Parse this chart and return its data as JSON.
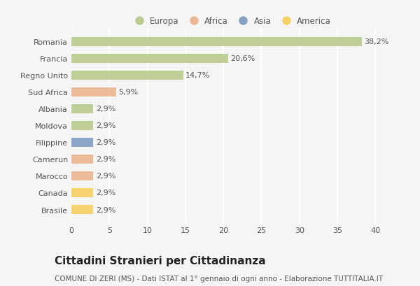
{
  "categories": [
    "Romania",
    "Francia",
    "Regno Unito",
    "Sud Africa",
    "Albania",
    "Moldova",
    "Filippine",
    "Camerun",
    "Marocco",
    "Canada",
    "Brasile"
  ],
  "values": [
    38.2,
    20.6,
    14.7,
    5.9,
    2.9,
    2.9,
    2.9,
    2.9,
    2.9,
    2.9,
    2.9
  ],
  "labels": [
    "38,2%",
    "20,6%",
    "14,7%",
    "5,9%",
    "2,9%",
    "2,9%",
    "2,9%",
    "2,9%",
    "2,9%",
    "2,9%",
    "2,9%"
  ],
  "colors": [
    "#adc178",
    "#adc178",
    "#adc178",
    "#e8a87c",
    "#adc178",
    "#adc178",
    "#6b8cba",
    "#e8a87c",
    "#e8a87c",
    "#f5c842",
    "#f5c842"
  ],
  "legend_labels": [
    "Europa",
    "Africa",
    "Asia",
    "America"
  ],
  "legend_colors": [
    "#adc178",
    "#e8a87c",
    "#6b8cba",
    "#f5c842"
  ],
  "title": "Cittadini Stranieri per Cittadinanza",
  "subtitle": "COMUNE DI ZERI (MS) - Dati ISTAT al 1° gennaio di ogni anno - Elaborazione TUTTITALIA.IT",
  "xlim": [
    0,
    42
  ],
  "xticks": [
    0,
    5,
    10,
    15,
    20,
    25,
    30,
    35,
    40
  ],
  "background_color": "#f5f5f5",
  "grid_color": "#ffffff",
  "bar_height": 0.55,
  "title_fontsize": 11,
  "subtitle_fontsize": 7.5,
  "label_fontsize": 8,
  "tick_fontsize": 8,
  "legend_fontsize": 8.5
}
